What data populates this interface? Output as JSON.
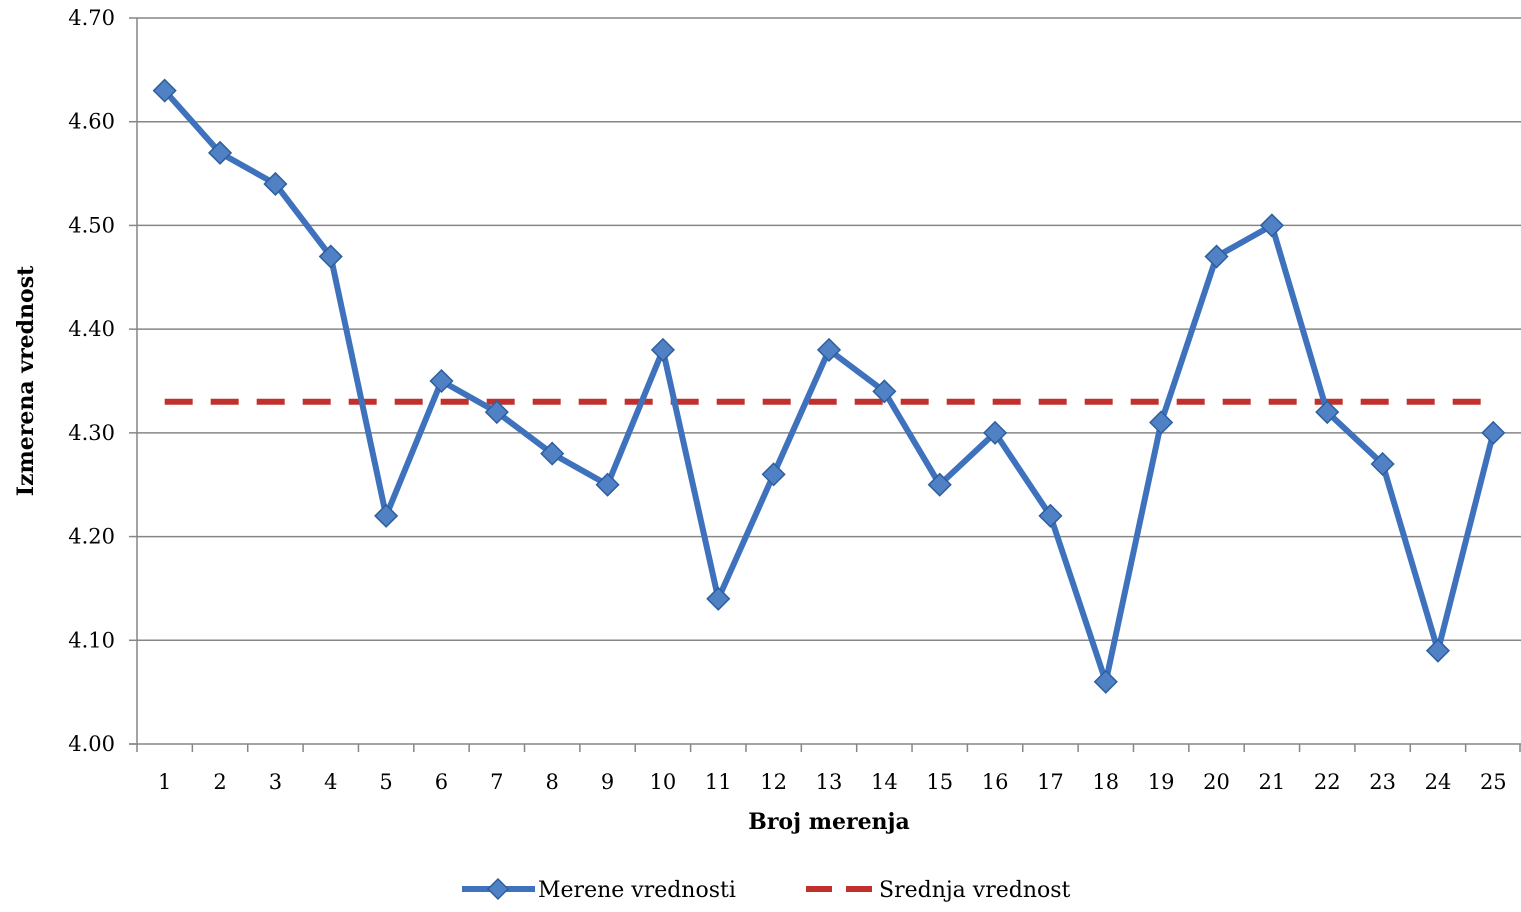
{
  "chart_data": {
    "type": "line",
    "xlabel": "Broj merenja",
    "ylabel": "Izmerena vrednost",
    "categories": [
      "1",
      "2",
      "3",
      "4",
      "5",
      "6",
      "7",
      "8",
      "9",
      "10",
      "11",
      "12",
      "13",
      "14",
      "15",
      "16",
      "17",
      "18",
      "19",
      "20",
      "21",
      "22",
      "23",
      "24",
      "25"
    ],
    "ylim": [
      4.0,
      4.7
    ],
    "yticks": [
      "4.00",
      "4.10",
      "4.20",
      "4.30",
      "4.40",
      "4.50",
      "4.60",
      "4.70"
    ],
    "grid": true,
    "legend_position": "bottom",
    "series": [
      {
        "name": "Merene vrednosti",
        "color": "#3F72BC",
        "style": "solid-with-diamond-markers",
        "values": [
          4.63,
          4.57,
          4.54,
          4.47,
          4.22,
          4.35,
          4.32,
          4.28,
          4.25,
          4.38,
          4.14,
          4.26,
          4.38,
          4.34,
          4.25,
          4.3,
          4.22,
          4.06,
          4.31,
          4.47,
          4.5,
          4.32,
          4.27,
          4.09,
          4.3
        ]
      },
      {
        "name": "Srednja vrednost",
        "color": "#C0312E",
        "style": "dashed",
        "values": [
          4.33,
          4.33,
          4.33,
          4.33,
          4.33,
          4.33,
          4.33,
          4.33,
          4.33,
          4.33,
          4.33,
          4.33,
          4.33,
          4.33,
          4.33,
          4.33,
          4.33,
          4.33,
          4.33,
          4.33,
          4.33,
          4.33,
          4.33,
          4.33,
          4.33
        ]
      }
    ]
  }
}
